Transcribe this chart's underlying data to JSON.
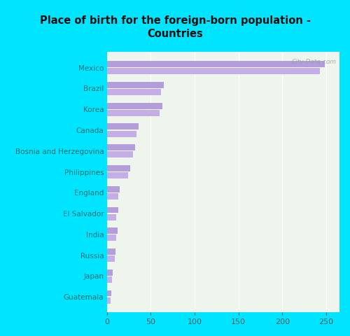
{
  "title": "Place of birth for the foreign-born population -\nCountries",
  "categories": [
    "Mexico",
    "Brazil",
    "Korea",
    "Canada",
    "Bosnia and Herzegovina",
    "Philippines",
    "England",
    "El Salvador",
    "India",
    "Russia",
    "Japan",
    "Guatemala"
  ],
  "values1": [
    248,
    65,
    63,
    36,
    32,
    27,
    15,
    13,
    12,
    10,
    7,
    5
  ],
  "values2": [
    243,
    62,
    60,
    34,
    30,
    24,
    13,
    11,
    11,
    9,
    6,
    4
  ],
  "bar_color1": "#b39ddb",
  "bar_color2": "#c5aee8",
  "background_outer": "#00e5ff",
  "background_inner": "#edf5ec",
  "title_color": "#111111",
  "label_color": "#007070",
  "tick_color": "#555555",
  "xlim": [
    0,
    265
  ],
  "xticks": [
    0,
    50,
    100,
    150,
    200,
    250
  ],
  "watermark": "City-Data.com"
}
